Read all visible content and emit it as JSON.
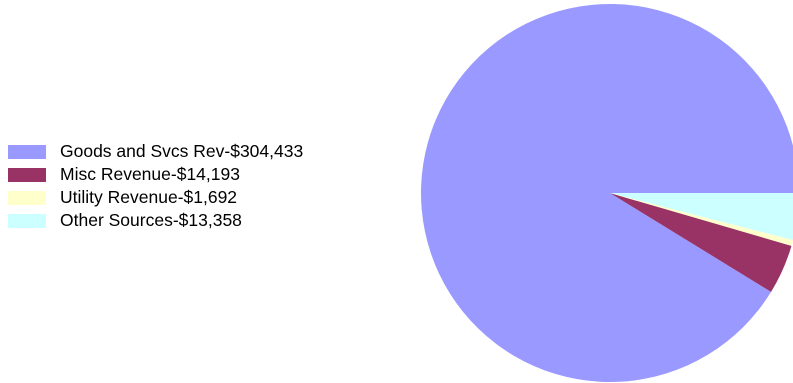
{
  "chart_data": {
    "type": "pie",
    "slices": [
      {
        "label": "Goods and Svcs Rev-$304,433",
        "value": 304433,
        "color": "#9999ff"
      },
      {
        "label": "Misc Revenue-$14,193",
        "value": 14193,
        "color": "#993366"
      },
      {
        "label": "Utility Revenue-$1,692",
        "value": 1692,
        "color": "#ffffcc"
      },
      {
        "label": "Other Sources-$13,358",
        "value": 13358,
        "color": "#ccffff"
      }
    ],
    "legend_position": "left",
    "start_angle_deg": 0,
    "direction": "clockwise"
  }
}
